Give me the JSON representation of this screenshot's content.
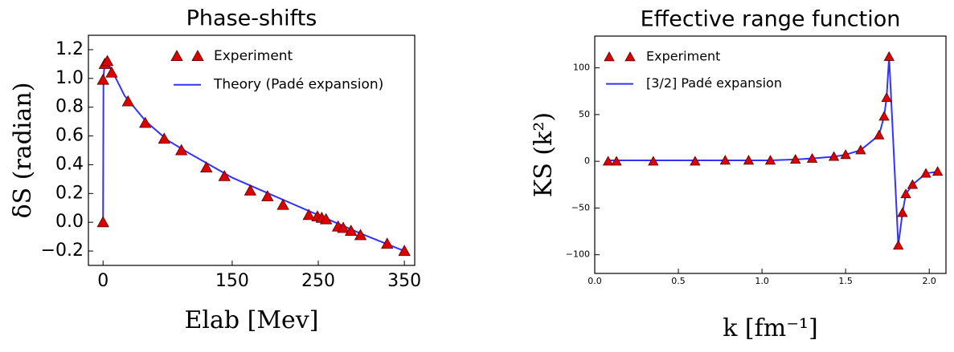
{
  "chart_data": [
    {
      "type": "line",
      "title": "Phase-shifts",
      "xlabel": "Elab [Mev]",
      "ylabel": "δS (radian)",
      "xlim": [
        -17,
        362
      ],
      "ylim": [
        -0.3,
        1.3
      ],
      "xticks": [
        0,
        150,
        250,
        350
      ],
      "yticks": [
        {
          "value": -0.2,
          "label": "−0.2"
        },
        {
          "value": 0,
          "label": "0.0"
        },
        0.2,
        0.4,
        0.6,
        0.8,
        {
          "value": 1,
          "label": "1.0"
        },
        1.2
      ],
      "legend": "upper right",
      "series": [
        {
          "name": "Experiment",
          "color": "#dd0000",
          "style": "markers",
          "x": [
            0,
            0,
            2,
            5,
            10,
            29,
            49,
            71,
            91,
            120,
            141,
            171,
            191,
            209,
            239,
            249,
            254,
            259,
            273,
            279,
            288,
            299,
            330,
            350
          ],
          "values": [
            0,
            0.99,
            1.1,
            1.12,
            1.04,
            0.84,
            0.69,
            0.58,
            0.5,
            0.38,
            0.32,
            0.22,
            0.18,
            0.12,
            0.05,
            0.04,
            0.03,
            0.02,
            -0.03,
            -0.04,
            -0.06,
            -0.09,
            -0.15,
            -0.2
          ]
        },
        {
          "name": "Theory  (Padé expansion)",
          "color": "#3333ff",
          "style": "line",
          "x": [
            0,
            0.5,
            2,
            5,
            10,
            25,
            50,
            75,
            100,
            150,
            200,
            250,
            300,
            350
          ],
          "values": [
            0,
            1.0,
            1.12,
            1.11,
            1.06,
            0.88,
            0.7,
            0.57,
            0.48,
            0.31,
            0.18,
            0.05,
            -0.08,
            -0.2
          ]
        }
      ]
    },
    {
      "type": "line",
      "title": "Effective range function",
      "xlabel": "k [fm⁻¹]",
      "ylabel": "KS (k²)",
      "xlim": [
        0,
        2.1
      ],
      "ylim": [
        -120,
        134
      ],
      "xticks": [
        {
          "value": 0,
          "label": "0.0"
        },
        0.5,
        {
          "value": 1,
          "label": "1.0"
        },
        1.5,
        {
          "value": 2,
          "label": "2.0"
        }
      ],
      "yticks": [
        {
          "value": -100,
          "label": "−100"
        },
        {
          "value": -50,
          "label": "−50"
        },
        0,
        50,
        100
      ],
      "legend": "upper left",
      "series": [
        {
          "name": "Experiment",
          "color": "#dd0000",
          "style": "markers",
          "x": [
            0.08,
            0.13,
            0.35,
            0.6,
            0.78,
            0.92,
            1.05,
            1.2,
            1.3,
            1.43,
            1.5,
            1.59,
            1.7,
            1.73,
            1.745,
            1.76,
            1.815,
            1.84,
            1.86,
            1.9,
            1.98,
            2.05
          ],
          "values": [
            0,
            0,
            0,
            0,
            1,
            1,
            1,
            2,
            3,
            5,
            7,
            12,
            28,
            48,
            68,
            112,
            -90,
            -55,
            -35,
            -25,
            -13,
            -11
          ]
        },
        {
          "name": "[3/2] Padé expansion",
          "color": "#3333ff",
          "style": "line",
          "x": [
            0.08,
            0.35,
            0.6,
            0.78,
            0.92,
            1.05,
            1.2,
            1.3,
            1.43,
            1.5,
            1.59,
            1.7,
            1.73,
            1.745,
            1.76,
            1.815,
            1.84,
            1.86,
            1.9,
            1.98,
            2.05
          ],
          "values": [
            1,
            1,
            1,
            1,
            1,
            1,
            2,
            3,
            5,
            7,
            12,
            28,
            48,
            68,
            112,
            -90,
            -55,
            -35,
            -25,
            -13,
            -11
          ]
        }
      ]
    }
  ]
}
